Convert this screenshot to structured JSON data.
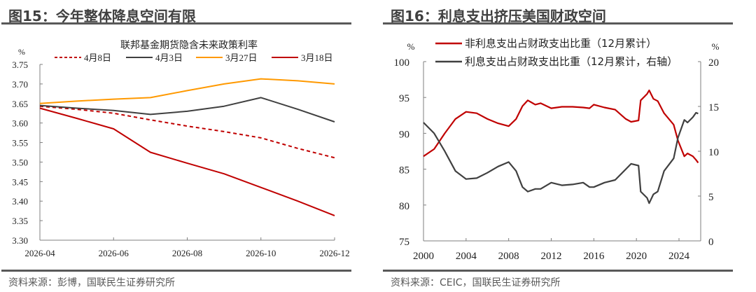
{
  "left": {
    "title": "图15：今年整体降息空间有限",
    "source": "资料来源：彭博，国联民生证券研究所"
  },
  "right": {
    "title": "图16：利息支出挤压美国财政空间",
    "source": "资料来源：CEIC，国联民生证券研究所"
  },
  "chart_data": [
    {
      "type": "line",
      "title": "联邦基金期货隐含未来政策利率",
      "ylabel": "%",
      "ylim": [
        3.3,
        3.75
      ],
      "yticks": [
        "3.30",
        "3.35",
        "3.40",
        "3.45",
        "3.50",
        "3.55",
        "3.60",
        "3.65",
        "3.70",
        "3.75"
      ],
      "xticks": [
        "2026-04",
        "2026-06",
        "2026-08",
        "2026-10",
        "2026-12"
      ],
      "legend": "top",
      "grid": false,
      "x": [
        "2026-04",
        "2026-05",
        "2026-06",
        "2026-07",
        "2026-08",
        "2026-09",
        "2026-10",
        "2026-11",
        "2026-12"
      ],
      "series": [
        {
          "name": "4月8日",
          "color": "#C00000",
          "dash": true,
          "values": [
            3.643,
            3.635,
            3.625,
            3.608,
            3.592,
            3.578,
            3.562,
            3.535,
            3.511
          ]
        },
        {
          "name": "4月3日",
          "color": "#404040",
          "values": [
            3.645,
            3.638,
            3.632,
            3.622,
            3.63,
            3.643,
            3.665,
            3.635,
            3.603
          ]
        },
        {
          "name": "3月27日",
          "color": "#FF9900",
          "values": [
            3.65,
            3.656,
            3.661,
            3.665,
            3.683,
            3.7,
            3.713,
            3.708,
            3.7
          ]
        },
        {
          "name": "3月18日",
          "color": "#C00000",
          "values": [
            3.638,
            3.612,
            3.585,
            3.525,
            3.497,
            3.47,
            3.435,
            3.4,
            3.363
          ]
        }
      ]
    },
    {
      "type": "line",
      "ylabel": "%",
      "y2label": "%",
      "ylim": [
        75,
        100
      ],
      "y2lim": [
        0,
        20
      ],
      "yticks": [
        "75",
        "80",
        "85",
        "90",
        "95",
        "100"
      ],
      "y2ticks": [
        "0",
        "5",
        "10",
        "15",
        "20"
      ],
      "xticks": [
        "2000",
        "2004",
        "2008",
        "2012",
        "2016",
        "2020",
        "2024"
      ],
      "legend": "top",
      "grid": false,
      "x": [
        2000,
        2001,
        2002,
        2003,
        2004,
        2005,
        2006,
        2007,
        2008,
        2008.7,
        2009.3,
        2009.8,
        2010.5,
        2011,
        2012,
        2013,
        2014,
        2015,
        2015.6,
        2016,
        2017,
        2018,
        2019,
        2019.5,
        2020.2,
        2020.4,
        2021,
        2021.2,
        2021.6,
        2022,
        2022.6,
        2023.5,
        2023.9,
        2024.5,
        2024.8,
        2025.3,
        2025.6,
        2025.8
      ],
      "series": [
        {
          "name": "非利息支出占财政支出比重（12月累计）",
          "color": "#C00000",
          "axis": "left",
          "values": [
            86.8,
            87.8,
            90.0,
            92.0,
            93.0,
            92.8,
            92.0,
            91.4,
            91.0,
            92.0,
            93.8,
            94.6,
            94.0,
            94.2,
            93.5,
            93.7,
            93.7,
            93.6,
            93.5,
            94.0,
            93.6,
            93.3,
            92.0,
            91.6,
            91.8,
            94.6,
            95.5,
            96.0,
            94.8,
            94.5,
            92.8,
            91.2,
            89.0,
            86.8,
            87.2,
            86.8,
            86.3,
            85.9
          ]
        },
        {
          "name": "利息支出占财政支出比重（12月累计，右轴）",
          "color": "#404040",
          "axis": "right",
          "values": [
            13.2,
            12.0,
            10.0,
            7.8,
            6.9,
            7.0,
            7.6,
            8.3,
            8.8,
            7.8,
            6.0,
            5.5,
            5.8,
            5.8,
            6.5,
            6.2,
            6.3,
            6.5,
            6.0,
            6.0,
            6.5,
            6.8,
            8.0,
            8.6,
            8.4,
            5.5,
            4.8,
            4.2,
            5.2,
            5.5,
            7.8,
            9.2,
            11.5,
            13.5,
            13.2,
            13.8,
            14.3,
            14.2
          ]
        }
      ]
    }
  ]
}
